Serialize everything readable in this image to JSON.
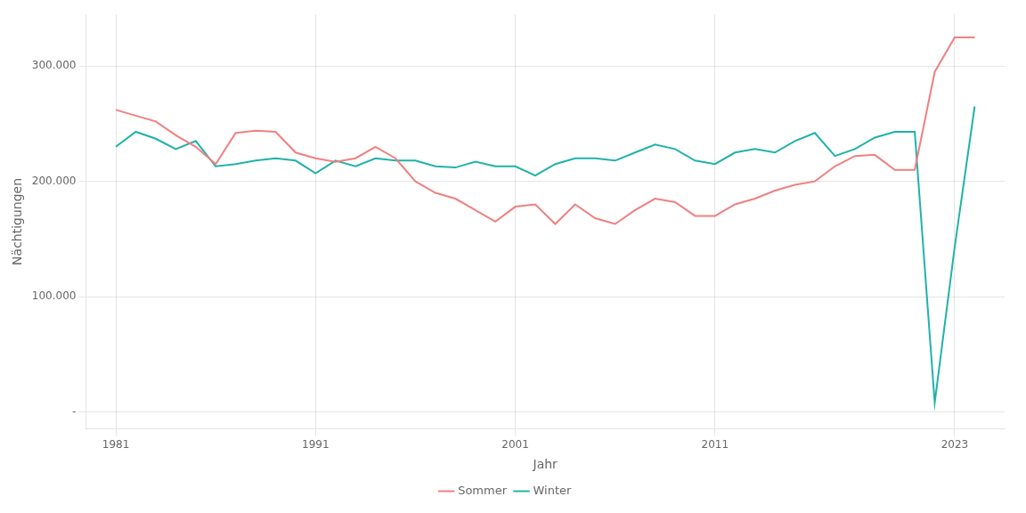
{
  "chart_data": {
    "type": "line",
    "x": [
      1981,
      1982,
      1983,
      1984,
      1985,
      1986,
      1987,
      1988,
      1989,
      1990,
      1991,
      1992,
      1993,
      1994,
      1995,
      1996,
      1997,
      1998,
      1999,
      2000,
      2001,
      2002,
      2003,
      2004,
      2005,
      2006,
      2007,
      2008,
      2009,
      2010,
      2011,
      2012,
      2013,
      2014,
      2015,
      2016,
      2017,
      2018,
      2019,
      2020,
      2021,
      2022,
      2023,
      2024
    ],
    "series": [
      {
        "name": "Sommer",
        "color": "#F08080",
        "values": [
          262000,
          257000,
          252000,
          240000,
          230000,
          215000,
          242000,
          244000,
          243000,
          225000,
          220000,
          217000,
          220000,
          230000,
          220000,
          200000,
          190000,
          185000,
          175000,
          165000,
          178000,
          180000,
          163000,
          180000,
          168000,
          163000,
          175000,
          185000,
          182000,
          170000,
          170000,
          180000,
          185000,
          192000,
          197000,
          200000,
          213000,
          222000,
          223000,
          210000,
          210000,
          295000,
          325000,
          325000
        ]
      },
      {
        "name": "Winter",
        "color": "#20B2AA",
        "values": [
          230000,
          243000,
          237000,
          228000,
          235000,
          213000,
          215000,
          218000,
          220000,
          218000,
          207000,
          218000,
          213000,
          220000,
          218000,
          218000,
          213000,
          212000,
          217000,
          213000,
          213000,
          205000,
          215000,
          220000,
          220000,
          218000,
          225000,
          232000,
          228000,
          218000,
          215000,
          225000,
          228000,
          225000,
          235000,
          242000,
          222000,
          228000,
          238000,
          243000,
          243000,
          8000,
          143000,
          265000
        ]
      }
    ],
    "xlabel": "Jahr",
    "ylabel": "Nächtigungen",
    "xlim": [
      1979.5,
      2025.5
    ],
    "xticks": [
      1981,
      1991,
      2001,
      2011,
      2023
    ],
    "ylim": [
      -15000,
      345000
    ],
    "yticks": [
      {
        "value": 0,
        "label": "-"
      },
      {
        "value": 100000,
        "label": "100.000"
      },
      {
        "value": 200000,
        "label": "200.000"
      },
      {
        "value": 300000,
        "label": "300.000"
      }
    ],
    "grid": true,
    "legend": "bottom"
  }
}
